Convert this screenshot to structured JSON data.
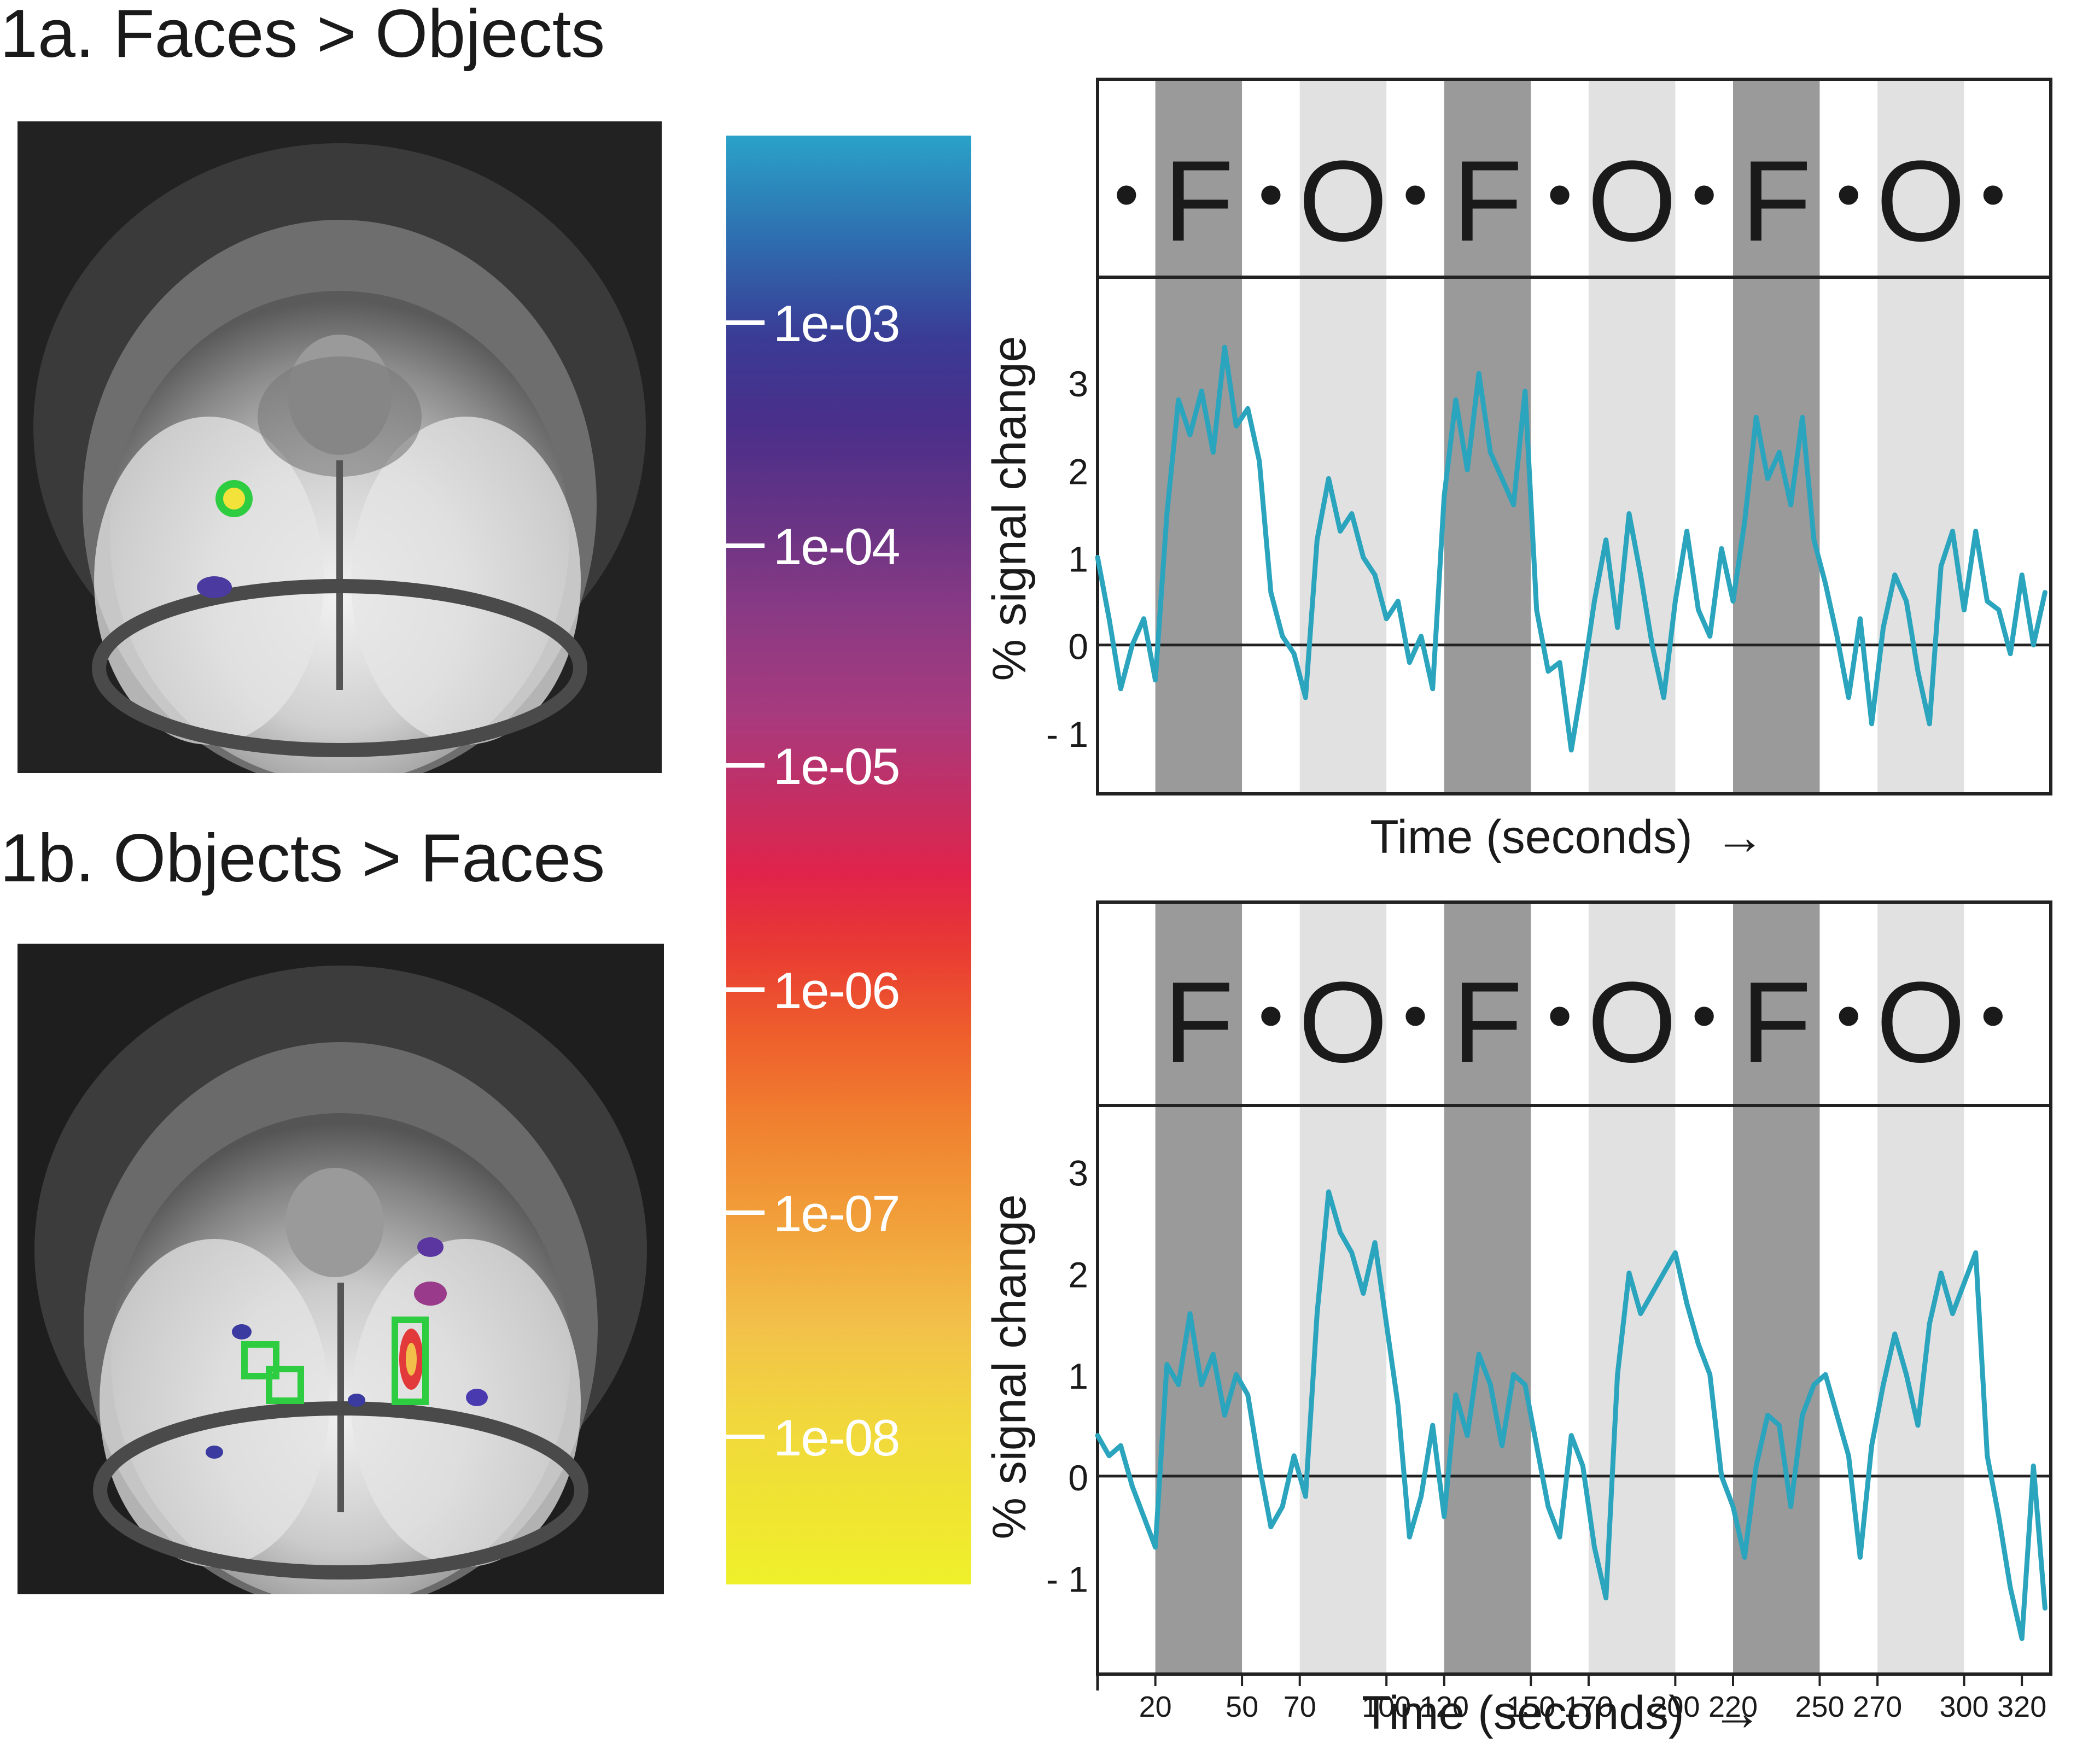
{
  "titles": {
    "a": "1a. Faces > Objects",
    "b": "1b. Objects > Faces"
  },
  "colorbar": {
    "ticks": [
      "1e-03",
      "1e-04",
      "1e-05",
      "1e-06",
      "1e-07",
      "1e-08"
    ]
  },
  "colors": {
    "trace": "#2ba4bd",
    "face_block": "#9a9a9a",
    "object_block": "#e1e1e1",
    "roi_outline": "#2ecc40"
  },
  "chart_data": [
    {
      "type": "line",
      "panel": "1a",
      "xlabel": "Time (seconds)",
      "arrow": "→",
      "ylabel": "% signal change",
      "yticks": [
        3,
        2,
        1,
        0,
        -1
      ],
      "ylim": [
        -1.7,
        4.2
      ],
      "xlim": [
        0,
        330
      ],
      "block_labels": [
        "•",
        "F",
        "•",
        "O",
        "•",
        "F",
        "•",
        "O",
        "•",
        "F",
        "•",
        "O",
        "•"
      ],
      "blocks": [
        {
          "label": "F",
          "start": 20,
          "end": 50
        },
        {
          "label": "O",
          "start": 70,
          "end": 100
        },
        {
          "label": "F",
          "start": 120,
          "end": 150
        },
        {
          "label": "O",
          "start": 170,
          "end": 200
        },
        {
          "label": "F",
          "start": 220,
          "end": 250
        },
        {
          "label": "O",
          "start": 270,
          "end": 300
        }
      ],
      "x": [
        0,
        4,
        8,
        12,
        16,
        20,
        24,
        28,
        32,
        36,
        40,
        44,
        48,
        52,
        56,
        60,
        64,
        68,
        72,
        76,
        80,
        84,
        88,
        92,
        96,
        100,
        104,
        108,
        112,
        116,
        120,
        124,
        128,
        132,
        136,
        140,
        144,
        148,
        152,
        156,
        160,
        164,
        168,
        172,
        176,
        180,
        184,
        188,
        192,
        196,
        200,
        204,
        208,
        212,
        216,
        220,
        224,
        228,
        232,
        236,
        240,
        244,
        248,
        252,
        256,
        260,
        264,
        268,
        272,
        276,
        280,
        284,
        288,
        292,
        296,
        300,
        304,
        308,
        312,
        316,
        320,
        324,
        328
      ],
      "y": [
        1.0,
        0.3,
        -0.5,
        0.0,
        0.3,
        -0.4,
        1.5,
        2.8,
        2.4,
        2.9,
        2.2,
        3.4,
        2.5,
        2.7,
        2.1,
        0.6,
        0.1,
        -0.1,
        -0.6,
        1.2,
        1.9,
        1.3,
        1.5,
        1.0,
        0.8,
        0.3,
        0.5,
        -0.2,
        0.1,
        -0.5,
        1.7,
        2.8,
        2.0,
        3.1,
        2.2,
        1.9,
        1.6,
        2.9,
        0.4,
        -0.3,
        -0.2,
        -1.2,
        -0.4,
        0.5,
        1.2,
        0.2,
        1.5,
        0.8,
        0.0,
        -0.6,
        0.5,
        1.3,
        0.4,
        0.1,
        1.1,
        0.5,
        1.4,
        2.6,
        1.9,
        2.2,
        1.6,
        2.6,
        1.2,
        0.7,
        0.1,
        -0.6,
        0.3,
        -0.9,
        0.2,
        0.8,
        0.5,
        -0.3,
        -0.9,
        0.9,
        1.3,
        0.4,
        1.3,
        0.5,
        0.4,
        -0.1,
        0.8,
        0.0,
        0.6
      ]
    },
    {
      "type": "line",
      "panel": "1b",
      "xlabel": "Time (seconds)",
      "arrow": "→",
      "ylabel": "% signal change",
      "yticks": [
        3,
        2,
        1,
        0,
        -1
      ],
      "ylim": [
        -1.95,
        3.65
      ],
      "xlim": [
        0,
        330
      ],
      "xticks": [
        20,
        50,
        70,
        100,
        120,
        150,
        170,
        200,
        220,
        250,
        270,
        300,
        320
      ],
      "block_labels": [
        "F",
        "•",
        "O",
        "•",
        "F",
        "•",
        "O",
        "•",
        "F",
        "•",
        "O",
        "•"
      ],
      "blocks": [
        {
          "label": "F",
          "start": 20,
          "end": 50
        },
        {
          "label": "O",
          "start": 70,
          "end": 100
        },
        {
          "label": "F",
          "start": 120,
          "end": 150
        },
        {
          "label": "O",
          "start": 170,
          "end": 200
        },
        {
          "label": "F",
          "start": 220,
          "end": 250
        },
        {
          "label": "O",
          "start": 270,
          "end": 300
        }
      ],
      "x": [
        0,
        4,
        8,
        12,
        16,
        20,
        24,
        28,
        32,
        36,
        40,
        44,
        48,
        52,
        56,
        60,
        64,
        68,
        72,
        76,
        80,
        84,
        88,
        92,
        96,
        100,
        104,
        108,
        112,
        116,
        120,
        124,
        128,
        132,
        136,
        140,
        144,
        148,
        152,
        156,
        160,
        164,
        168,
        172,
        176,
        180,
        184,
        188,
        192,
        196,
        200,
        204,
        208,
        212,
        216,
        220,
        224,
        228,
        232,
        236,
        240,
        244,
        248,
        252,
        256,
        260,
        264,
        268,
        272,
        276,
        280,
        284,
        288,
        292,
        296,
        300,
        304,
        308,
        312,
        316,
        320,
        324,
        328
      ],
      "y": [
        0.4,
        0.2,
        0.3,
        -0.1,
        -0.4,
        -0.7,
        1.1,
        0.9,
        1.6,
        0.9,
        1.2,
        0.6,
        1.0,
        0.8,
        0.1,
        -0.5,
        -0.3,
        0.2,
        -0.2,
        1.6,
        2.8,
        2.4,
        2.2,
        1.8,
        2.3,
        1.5,
        0.7,
        -0.6,
        -0.2,
        0.5,
        -0.4,
        0.8,
        0.4,
        1.2,
        0.9,
        0.3,
        1.0,
        0.9,
        0.3,
        -0.3,
        -0.6,
        0.4,
        0.1,
        -0.7,
        -1.2,
        1.0,
        2.0,
        1.6,
        1.8,
        2.0,
        2.2,
        1.7,
        1.3,
        1.0,
        0.0,
        -0.3,
        -0.8,
        0.1,
        0.6,
        0.5,
        -0.3,
        0.6,
        0.9,
        1.0,
        0.6,
        0.2,
        -0.8,
        0.3,
        0.9,
        1.4,
        1.0,
        0.5,
        1.5,
        2.0,
        1.6,
        1.9,
        2.2,
        0.2,
        -0.4,
        -1.1,
        -1.6,
        0.1,
        -1.3
      ]
    }
  ]
}
